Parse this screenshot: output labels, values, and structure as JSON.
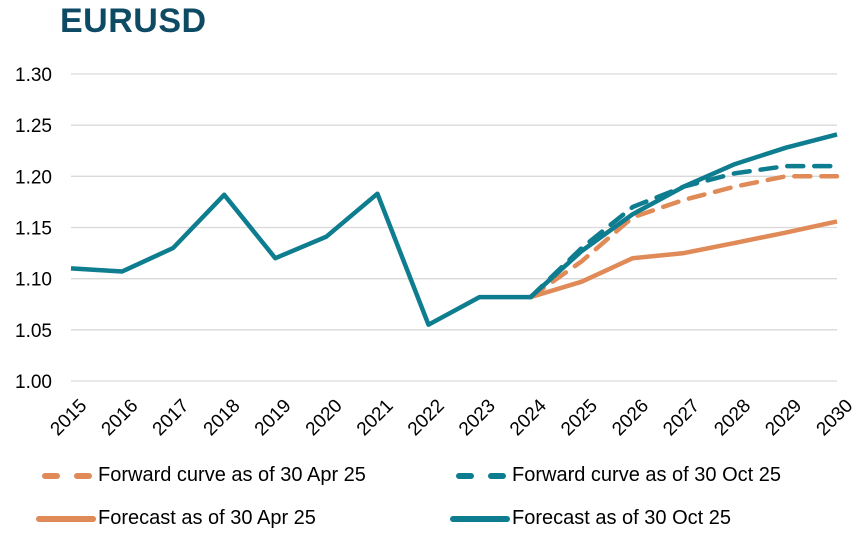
{
  "chart_data": {
    "type": "line",
    "title": "EURUSD",
    "xlabel": "",
    "ylabel": "",
    "ylim": [
      1.0,
      1.3
    ],
    "yticks": [
      "1.00",
      "1.05",
      "1.10",
      "1.15",
      "1.20",
      "1.25",
      "1.30"
    ],
    "ytick_values": [
      1.0,
      1.05,
      1.1,
      1.15,
      1.2,
      1.25,
      1.3
    ],
    "grid": true,
    "legend_position": "bottom",
    "categories": [
      "2015",
      "2016",
      "2017",
      "2018",
      "2019",
      "2020",
      "2021",
      "2022",
      "2023",
      "2024",
      "2025",
      "2026",
      "2027",
      "2028",
      "2029",
      "2030"
    ],
    "series": [
      {
        "name": "Forward curve as of 30 Apr 25",
        "style": "dashed",
        "color": "#e08a57",
        "values": [
          null,
          null,
          null,
          null,
          null,
          null,
          null,
          null,
          null,
          1.082,
          1.117,
          1.16,
          1.177,
          1.19,
          1.2,
          1.2
        ]
      },
      {
        "name": "Forward curve as of 30 Oct 25",
        "style": "dashed",
        "color": "#0e7d8f",
        "values": [
          null,
          null,
          null,
          null,
          null,
          null,
          null,
          null,
          null,
          1.082,
          1.13,
          1.17,
          1.19,
          1.203,
          1.21,
          1.21
        ]
      },
      {
        "name": "Forecast as of 30 Apr 25",
        "style": "solid",
        "color": "#e08a57",
        "values": [
          null,
          null,
          null,
          null,
          null,
          null,
          null,
          null,
          null,
          1.082,
          1.097,
          1.12,
          1.125,
          1.135,
          1.145,
          1.156
        ]
      },
      {
        "name": "Forecast as of 30 Oct 25",
        "style": "solid",
        "color": "#0e7d8f",
        "values": [
          1.11,
          1.107,
          1.13,
          1.182,
          1.12,
          1.141,
          1.183,
          1.055,
          1.082,
          1.082,
          1.127,
          1.163,
          1.19,
          1.212,
          1.228,
          1.241
        ]
      }
    ]
  },
  "legend": {
    "items": [
      {
        "label": "Forward curve as of 30 Apr 25",
        "color": "#e08a57",
        "style": "dashed"
      },
      {
        "label": "Forward curve as of 30 Oct 25",
        "color": "#0e7d8f",
        "style": "dashed"
      },
      {
        "label": "Forecast as of 30 Apr 25",
        "color": "#e08a57",
        "style": "solid"
      },
      {
        "label": "Forecast as of 30 Oct 25",
        "color": "#0e7d8f",
        "style": "solid"
      }
    ]
  },
  "colors": {
    "title": "#0d4a63",
    "grid": "#d9d9d9"
  }
}
